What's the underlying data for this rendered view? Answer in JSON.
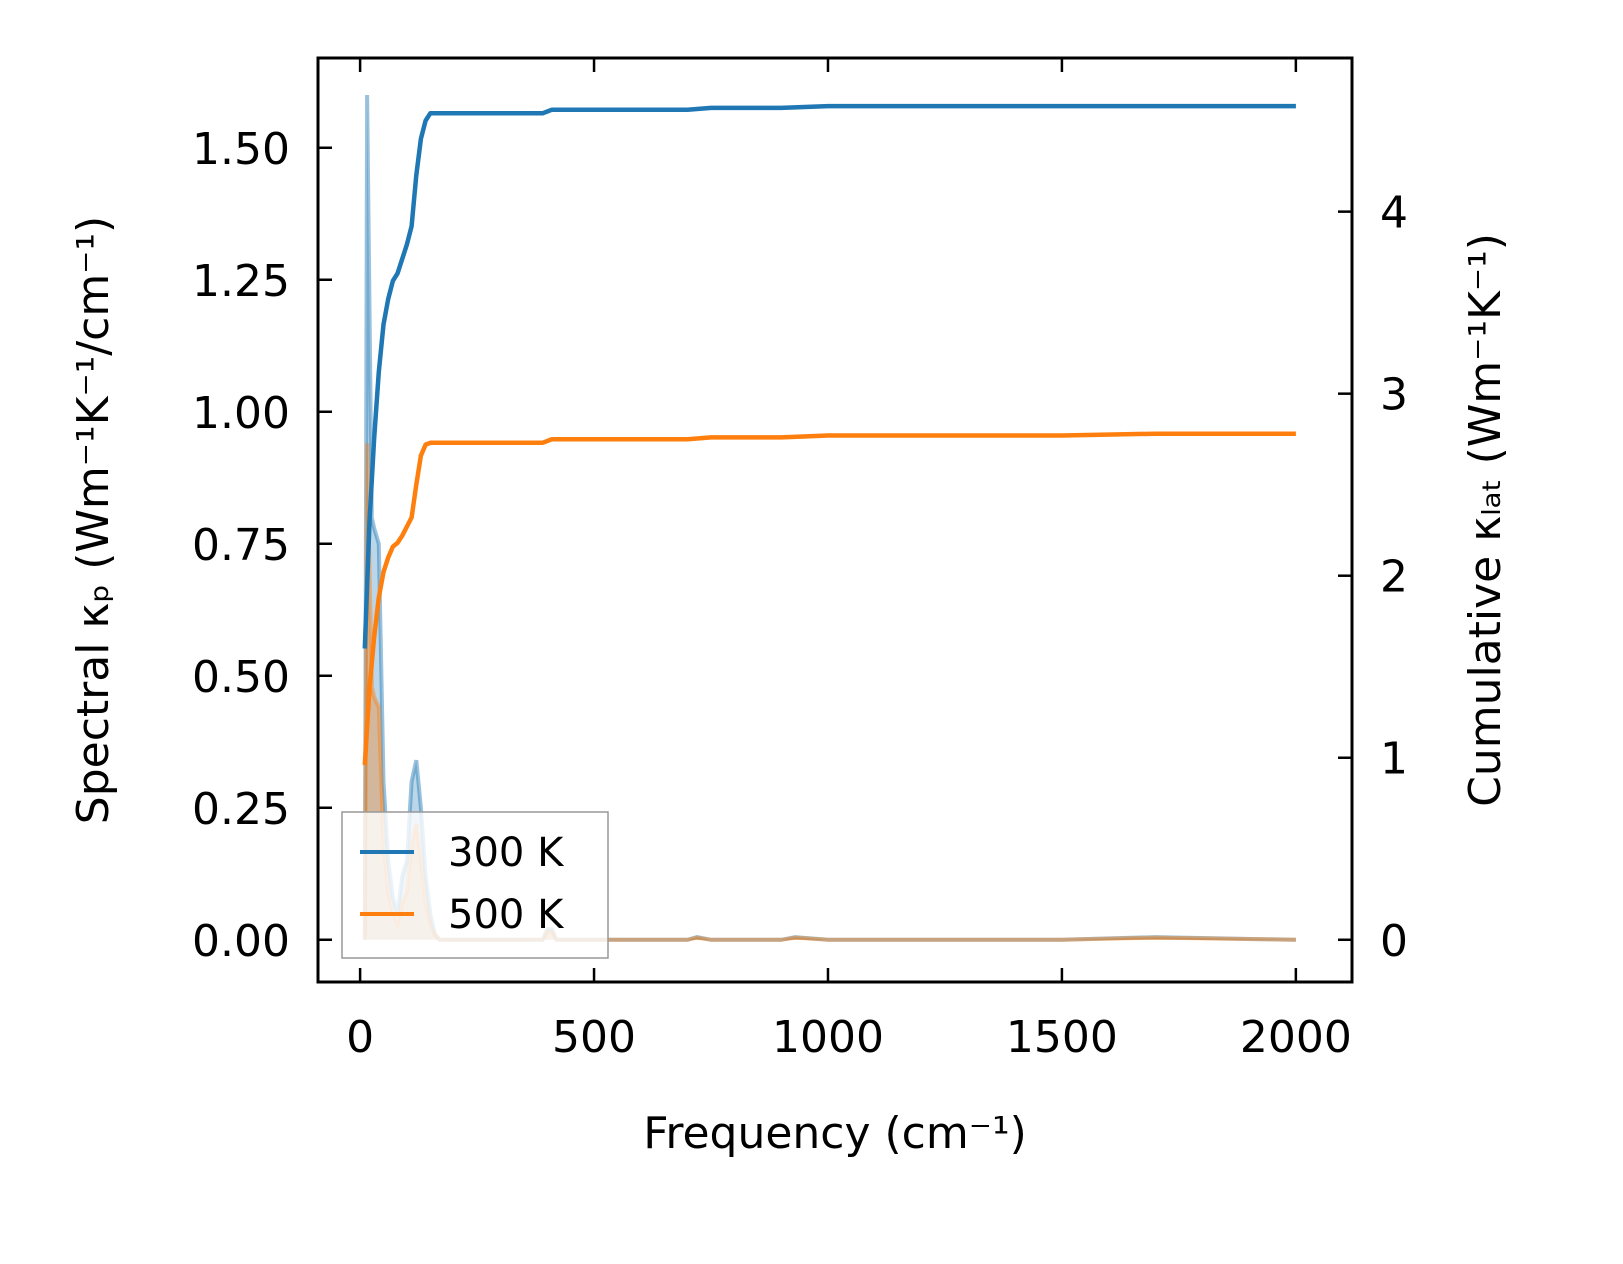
{
  "chart_data": {
    "type": "line",
    "xlabel": "Frequency (cm⁻¹)",
    "ylabel_left": "Spectral κₚ (Wm⁻¹K⁻¹/cm⁻¹)",
    "ylabel_right": "Cumulative κₗₐₜ (Wm⁻¹K⁻¹)",
    "xlim": [
      -90,
      2120
    ],
    "ylim_left": [
      -0.08,
      1.67
    ],
    "ylim_right": [
      -0.232,
      4.844
    ],
    "xticks": [
      0,
      500,
      1000,
      1500,
      2000
    ],
    "xtick_labels": [
      "0",
      "500",
      "1000",
      "1500",
      "2000"
    ],
    "yticks_left": [
      0.0,
      0.25,
      0.5,
      0.75,
      1.0,
      1.25,
      1.5
    ],
    "ytick_labels_left": [
      "0.00",
      "0.25",
      "0.50",
      "0.75",
      "1.00",
      "1.25",
      "1.50"
    ],
    "yticks_right": [
      0,
      1,
      2,
      3,
      4
    ],
    "ytick_labels_right": [
      "0",
      "1",
      "2",
      "3",
      "4"
    ],
    "legend": {
      "placement": "lower-left",
      "entries": [
        "300 K",
        "500 K"
      ]
    },
    "series": [
      {
        "name": "300 K",
        "color": "#1f77b4",
        "cumulative": {
          "x": [
            10,
            20,
            30,
            40,
            50,
            60,
            70,
            80,
            90,
            100,
            110,
            120,
            130,
            140,
            150,
            200,
            300,
            390,
            400,
            410,
            500,
            600,
            700,
            750,
            800,
            900,
            1000,
            1500,
            2000
          ],
          "y": [
            1.6,
            2.3,
            2.75,
            3.12,
            3.38,
            3.52,
            3.62,
            3.66,
            3.74,
            3.82,
            3.92,
            4.2,
            4.4,
            4.5,
            4.54,
            4.54,
            4.54,
            4.54,
            4.55,
            4.56,
            4.56,
            4.56,
            4.56,
            4.57,
            4.57,
            4.57,
            4.58,
            4.58,
            4.58
          ]
        },
        "spectral": {
          "x": [
            10,
            15,
            20,
            25,
            30,
            40,
            50,
            60,
            70,
            80,
            90,
            100,
            110,
            120,
            130,
            140,
            150,
            160,
            170,
            200,
            300,
            390,
            400,
            410,
            420,
            500,
            600,
            700,
            720,
            750,
            800,
            900,
            930,
            1000,
            1500,
            1700,
            2000
          ],
          "y": [
            0.0,
            1.6,
            1.2,
            0.8,
            0.78,
            0.75,
            0.3,
            0.15,
            0.08,
            0.05,
            0.12,
            0.15,
            0.3,
            0.34,
            0.25,
            0.12,
            0.05,
            0.01,
            0.0,
            0.0,
            0.0,
            0.0,
            0.02,
            0.02,
            0.0,
            0.0,
            0.0,
            0.0,
            0.005,
            0.0,
            0.0,
            0.0,
            0.005,
            0.0,
            0.0,
            0.005,
            0.0
          ]
        }
      },
      {
        "name": "500 K",
        "color": "#ff7f0e",
        "cumulative": {
          "x": [
            10,
            20,
            30,
            40,
            50,
            60,
            70,
            80,
            90,
            100,
            110,
            120,
            130,
            140,
            150,
            200,
            300,
            390,
            400,
            410,
            500,
            600,
            700,
            750,
            800,
            900,
            1000,
            1500,
            1700,
            2000
          ],
          "y": [
            0.96,
            1.38,
            1.66,
            1.88,
            2.02,
            2.1,
            2.16,
            2.18,
            2.22,
            2.27,
            2.32,
            2.5,
            2.66,
            2.72,
            2.73,
            2.73,
            2.73,
            2.73,
            2.74,
            2.75,
            2.75,
            2.75,
            2.75,
            2.76,
            2.76,
            2.76,
            2.77,
            2.77,
            2.78,
            2.78
          ]
        },
        "spectral": {
          "x": [
            10,
            15,
            20,
            25,
            30,
            40,
            50,
            60,
            70,
            80,
            90,
            100,
            110,
            120,
            130,
            140,
            150,
            160,
            170,
            200,
            300,
            390,
            400,
            410,
            420,
            500,
            600,
            700,
            720,
            750,
            800,
            900,
            930,
            1000,
            1500,
            1700,
            2000
          ],
          "y": [
            0.0,
            0.94,
            0.7,
            0.48,
            0.46,
            0.44,
            0.18,
            0.09,
            0.05,
            0.03,
            0.07,
            0.09,
            0.18,
            0.22,
            0.15,
            0.07,
            0.03,
            0.01,
            0.0,
            0.0,
            0.0,
            0.0,
            0.015,
            0.015,
            0.0,
            0.0,
            0.0,
            0.0,
            0.004,
            0.0,
            0.0,
            0.0,
            0.004,
            0.0,
            0.0,
            0.004,
            0.0
          ]
        }
      }
    ]
  }
}
